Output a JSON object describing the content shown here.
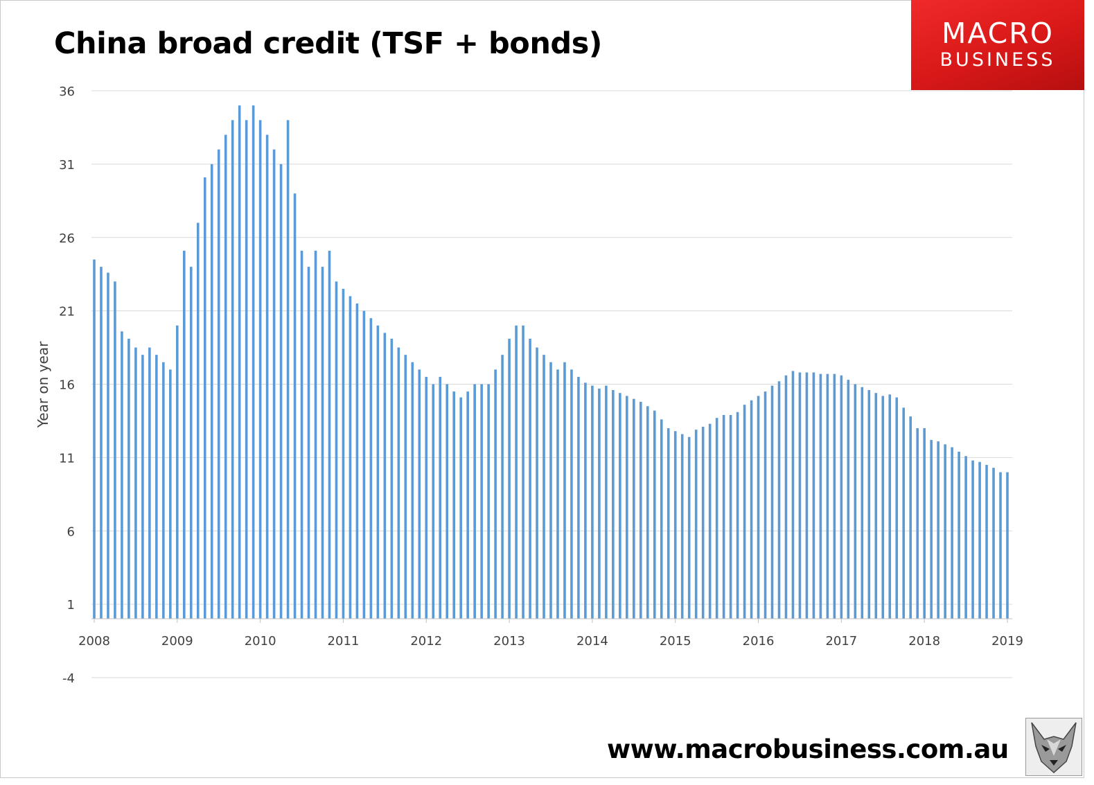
{
  "header": {
    "title": "China broad credit (TSF + bonds)",
    "logo_line1": "MACRO",
    "logo_line2": "BUSINESS"
  },
  "footer": {
    "url": "www.macrobusiness.com.au",
    "wolf_logo": "wolf-face-icon"
  },
  "colors": {
    "bar": "#5b9bd5",
    "grid": "#d9d9d9",
    "logo_red": "#e02020"
  },
  "chart_data": {
    "type": "bar",
    "title": "China broad credit (TSF + bonds)",
    "ylabel": "Year on year",
    "xlabel": "",
    "ylim": [
      -4,
      36
    ],
    "yticks": [
      36,
      31,
      26,
      21,
      16,
      11,
      6,
      1,
      -4
    ],
    "xticks": [
      "2008",
      "2009",
      "2010",
      "2011",
      "2012",
      "2013",
      "2014",
      "2015",
      "2016",
      "2017",
      "2018",
      "2019"
    ],
    "x_range": [
      "2008-01",
      "2019-01"
    ],
    "grid": true,
    "legend": "none",
    "series": [
      {
        "values": [
          24.5,
          24.0,
          23.6,
          23.0,
          19.6,
          19.1,
          18.5,
          18.0,
          18.5,
          18.0,
          17.5,
          17.0,
          20.0,
          25.1,
          24.0,
          27.0,
          30.1,
          31.0,
          32.0,
          33.0,
          34.0,
          35.0,
          34.0,
          35.0,
          34.0,
          33.0,
          32.0,
          31.0,
          34.0,
          29.0,
          25.1,
          24.0,
          25.1,
          24.0,
          25.1,
          23.0,
          22.5,
          22.0,
          21.5,
          21.0,
          20.5,
          20.0,
          19.5,
          19.1,
          18.5,
          18.0,
          17.5,
          17.0,
          16.5,
          16.0,
          16.5,
          16.0,
          15.5,
          15.1,
          15.5,
          16.0,
          16.0,
          16.0,
          17.0,
          18.0,
          19.1,
          20.0,
          20.0,
          19.1,
          18.5,
          18.0,
          17.5,
          17.0,
          17.5,
          17.0,
          16.5,
          16.1,
          15.9,
          15.7,
          15.9,
          15.6,
          15.4,
          15.2,
          15.0,
          14.8,
          14.5,
          14.2,
          13.6,
          13.0,
          12.8,
          12.6,
          12.4,
          12.9,
          13.1,
          13.3,
          13.7,
          13.9,
          13.9,
          14.1,
          14.6,
          14.9,
          15.2,
          15.5,
          15.9,
          16.2,
          16.6,
          16.9,
          16.8,
          16.8,
          16.8,
          16.7,
          16.7,
          16.7,
          16.6,
          16.3,
          16.0,
          15.8,
          15.6,
          15.4,
          15.2,
          15.3,
          15.1,
          14.4,
          13.8,
          13.0,
          13.0,
          12.2,
          12.1,
          11.9,
          11.7,
          11.4,
          11.1,
          10.8,
          10.7,
          10.5,
          10.3,
          10.0,
          10.0
        ]
      }
    ]
  }
}
